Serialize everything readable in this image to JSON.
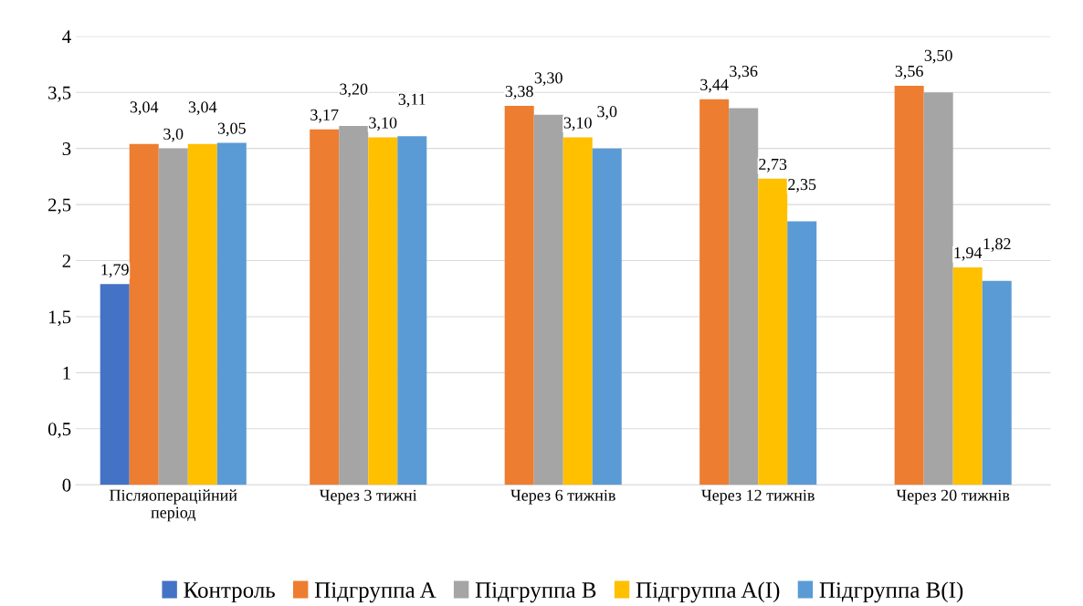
{
  "chart_data": {
    "type": "bar",
    "categories": [
      "Післяопераційний\nперіод",
      "Через 3 тижні",
      "Через 6 тижнів",
      "Через 12 тижнів",
      "Через 20 тижнів"
    ],
    "series": [
      {
        "name": "Контроль",
        "color": "#4472c4",
        "values": [
          1.79,
          null,
          null,
          null,
          null
        ],
        "value_labels": [
          "1,79",
          null,
          null,
          null,
          null
        ]
      },
      {
        "name": "Підгруппа A",
        "color": "#ed7d31",
        "values": [
          3.04,
          3.17,
          3.38,
          3.44,
          3.56
        ],
        "value_labels": [
          "3,04",
          "3,17",
          "3,38",
          "3,44",
          "3,56"
        ]
      },
      {
        "name": "Підгруппа B",
        "color": "#a5a5a5",
        "values": [
          3.0,
          3.2,
          3.3,
          3.36,
          3.5
        ],
        "value_labels": [
          "3,0",
          "3,20",
          "3,30",
          "3,36",
          "3,50"
        ]
      },
      {
        "name": "Підгруппа A(I)",
        "color": "#ffc000",
        "values": [
          3.04,
          3.1,
          3.1,
          2.73,
          1.94
        ],
        "value_labels": [
          "3,04",
          "3,10",
          "3,10",
          "2,73",
          "1,94"
        ]
      },
      {
        "name": "Підгруппа B(I)",
        "color": "#5b9bd5",
        "values": [
          3.05,
          3.11,
          3.0,
          2.35,
          1.82
        ],
        "value_labels": [
          "3,05",
          "3,11",
          "3,0",
          "2,35",
          "1,82"
        ]
      }
    ],
    "ylim": [
      0,
      4
    ],
    "yticks": [
      0,
      {
        "value": 0.5,
        "label": "0,5"
      },
      1,
      {
        "value": 1.5,
        "label": "1,5"
      },
      2,
      {
        "value": 2.5,
        "label": "2,5"
      },
      3,
      {
        "value": 3.5,
        "label": "3,5"
      },
      4
    ],
    "grid": "y",
    "legend": "bottom"
  }
}
